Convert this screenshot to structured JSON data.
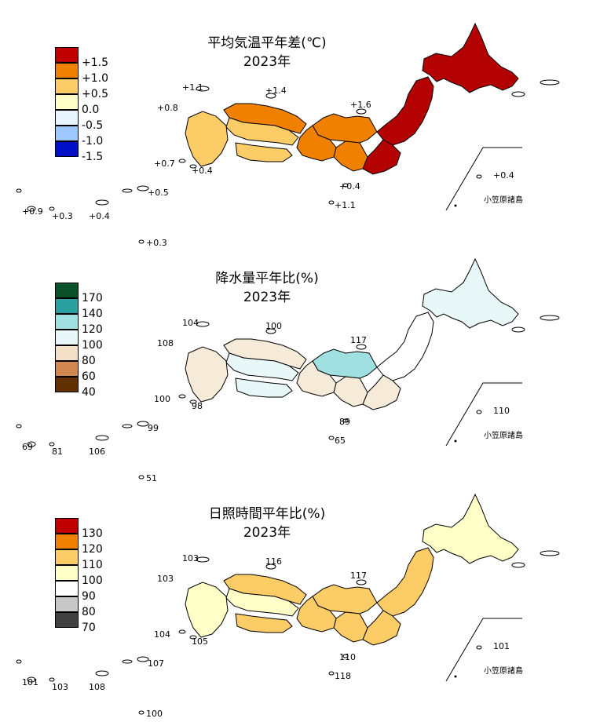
{
  "panels": [
    {
      "id": "temperature",
      "title": "平均気温平年差(℃)",
      "year": "2023年",
      "legend": [
        {
          "label": "+1.5",
          "color": "#c00000"
        },
        {
          "label": "+1.0",
          "color": "#f08000"
        },
        {
          "label": "+0.5",
          "color": "#fccc66"
        },
        {
          "label": "0.0",
          "color": "#ffffc8"
        },
        {
          "label": "-0.5",
          "color": "#e8f4ff"
        },
        {
          "label": "-1.0",
          "color": "#9cc8ff"
        },
        {
          "label": "-1.5",
          "color": "#0010c8"
        }
      ],
      "station_values": [
        "+1.1",
        "+1.4",
        "+0.8",
        "+1.6",
        "+0.7",
        "+0.4",
        "+0.4",
        "+1.1",
        "+0.9",
        "+0.3",
        "+0.4",
        "+0.5",
        "+0.3",
        "+0.4"
      ],
      "ogasawara_label": "小笠原諸島",
      "regions": {
        "hokkaido": "#b30000",
        "tohoku": "#b30000",
        "kanto": "#b30000",
        "hokuriku": "#f08000",
        "tokai": "#f08000",
        "kinki": "#f08000",
        "chugoku": "#fccc66",
        "shikoku": "#fccc66",
        "kyushu": "#fccc66",
        "sanin": "#f08000"
      }
    },
    {
      "id": "precipitation",
      "title": "降水量平年比(%)",
      "year": "2023年",
      "legend": [
        {
          "label": "170",
          "color": "#0a5028"
        },
        {
          "label": "140",
          "color": "#2aa0a0"
        },
        {
          "label": "120",
          "color": "#a0e0e0"
        },
        {
          "label": "100",
          "color": "#e8f8f8"
        },
        {
          "label": "80",
          "color": "#f4e0c8"
        },
        {
          "label": "60",
          "color": "#d08850"
        },
        {
          "label": "40",
          "color": "#603000"
        }
      ],
      "station_values": [
        "104",
        "100",
        "108",
        "117",
        "100",
        "98",
        "89",
        "65",
        "69",
        "81",
        "106",
        "99",
        "51",
        "110"
      ],
      "ogasawara_label": "小笠原諸島",
      "regions": {
        "hokkaido": "#e8f8f8",
        "tohoku": "#ffffff",
        "kanto": "#f6ebd8",
        "hokuriku": "#a0e0e0",
        "tokai": "#f6ebd8",
        "kinki": "#f6ebd8",
        "chugoku": "#e8f8f8",
        "shikoku": "#e8f8f8",
        "kyushu": "#f6ebd8",
        "sanin": "#f6ebd8"
      }
    },
    {
      "id": "sunshine",
      "title": "日照時間平年比(%)",
      "year": "2023年",
      "legend": [
        {
          "label": "130",
          "color": "#c00000"
        },
        {
          "label": "120",
          "color": "#f08000"
        },
        {
          "label": "110",
          "color": "#fccc66"
        },
        {
          "label": "100",
          "color": "#ffffc8"
        },
        {
          "label": "90",
          "color": "#ffffff"
        },
        {
          "label": "80",
          "color": "#c8c8c8"
        },
        {
          "label": "70",
          "color": "#404040"
        }
      ],
      "station_values": [
        "103",
        "116",
        "103",
        "117",
        "104",
        "105",
        "110",
        "118",
        "101",
        "103",
        "108",
        "107",
        "100",
        "101"
      ],
      "ogasawara_label": "小笠原諸島",
      "regions": {
        "hokkaido": "#ffffc8",
        "tohoku": "#fccc66",
        "kanto": "#fccc66",
        "hokuriku": "#fccc66",
        "tokai": "#fccc66",
        "kinki": "#fccc66",
        "chugoku": "#ffffc8",
        "shikoku": "#fccc66",
        "kyushu": "#ffffc8",
        "sanin": "#fccc66"
      }
    }
  ]
}
